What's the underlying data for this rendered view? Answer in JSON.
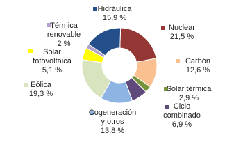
{
  "chart_data": {
    "type": "donut",
    "categories": [
      "Nuclear",
      "Carbón",
      "Solar térmica",
      "Ciclo combinado",
      "Cogeneración y otros",
      "Eólica",
      "Solar fotovoltaica",
      "Térmica renovable",
      "Hidráulica"
    ],
    "values": [
      21.5,
      12.6,
      2.9,
      6.9,
      13.8,
      19.3,
      5.1,
      2,
      15.9
    ],
    "value_labels": [
      "21,5 %",
      "12,6 %",
      "2,9 %",
      "6,9 %",
      "13,8 %",
      "19,3 %",
      "5,1 %",
      "2 %",
      "15,9 %"
    ],
    "colors": [
      "#953735",
      "#fac090",
      "#77933c",
      "#604a7b",
      "#8eb4e3",
      "#d7e4bd",
      "#ffff00",
      "#b3a2c7",
      "#254f8a"
    ]
  }
}
